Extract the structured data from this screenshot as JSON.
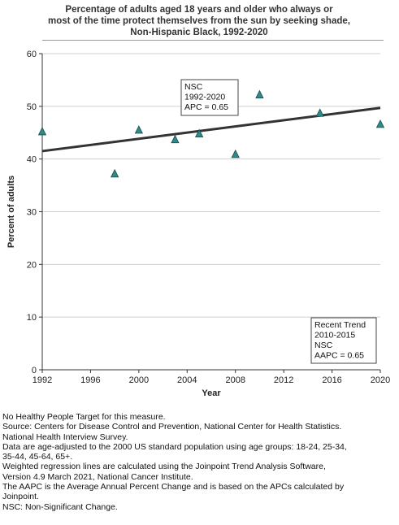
{
  "chart_data": {
    "type": "scatter",
    "title_lines": [
      "Percentage of adults aged 18 years and older who always or",
      "most of the time protect themselves from the sun by seeking shade,",
      "Non-Hispanic Black,  1992-2020"
    ],
    "xlabel": "Year",
    "ylabel": "Percent of adults",
    "xlim": [
      1992,
      2020
    ],
    "ylim": [
      0,
      60
    ],
    "x_ticks": [
      1992,
      1996,
      2000,
      2004,
      2008,
      2012,
      2016,
      2020
    ],
    "y_ticks": [
      0,
      10,
      20,
      30,
      40,
      50,
      60
    ],
    "series": [
      {
        "marker": "triangle",
        "color": "#2e8b8b",
        "x": [
          1992,
          1998,
          2000,
          2003,
          2005,
          2008,
          2010,
          2015,
          2020
        ],
        "y": [
          45.2,
          37.2,
          45.5,
          43.7,
          44.8,
          40.9,
          52.2,
          48.7,
          46.6
        ]
      }
    ],
    "trend_line": {
      "color": "#333333",
      "x": [
        1992,
        2020
      ],
      "y": [
        41.5,
        49.7
      ]
    },
    "annotations": [
      {
        "lines": [
          "NSC",
          "1992-2020",
          "APC =  0.65"
        ],
        "placement": "upper-middle"
      },
      {
        "lines": [
          "Recent Trend",
          "2010-2015",
          "NSC",
          "AAPC =  0.65"
        ],
        "placement": "bottom-right"
      }
    ]
  },
  "notes": [
    "No Healthy People Target for this measure.",
    "Source: Centers for Disease Control and Prevention, National Center for Health Statistics.",
    "National Health Interview Survey.",
    "Data are age-adjusted to the 2000 US standard population using age groups: 18-24, 25-34,",
    "35-44, 45-64, 65+.",
    "Weighted regression lines are calculated using the Joinpoint Trend Analysis Software,",
    "Version 4.9 March 2021, National Cancer Institute.",
    "The AAPC is the Average Annual Percent Change and is based on the APCs calculated by",
    "Joinpoint.",
    "NSC: Non-Significant Change."
  ]
}
